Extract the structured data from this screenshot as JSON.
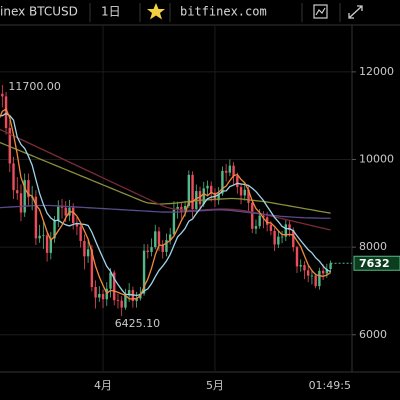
{
  "toolbar": {
    "symbol": "inex BTCUSD",
    "interval": "1日",
    "source": "bitfinex.com"
  },
  "chart_data": {
    "type": "candlestick",
    "categories": [
      null,
      null,
      null,
      null,
      null,
      null,
      null,
      null,
      null,
      null,
      null,
      null,
      null,
      null,
      null,
      null,
      null,
      null,
      null,
      null,
      null,
      null,
      null,
      null,
      null,
      null,
      null,
      null,
      "4月",
      null,
      null,
      null,
      null,
      null,
      null,
      null,
      null,
      null,
      null,
      null,
      null,
      null,
      null,
      null,
      null,
      null,
      null,
      null,
      null,
      null,
      null,
      null,
      null,
      null,
      null,
      null,
      null,
      null,
      "5月",
      null,
      null,
      null,
      null,
      null,
      null,
      null,
      null,
      null,
      null,
      null,
      null,
      null,
      null,
      null,
      null,
      null,
      null,
      null,
      null,
      null,
      null,
      null,
      null,
      null,
      null,
      null,
      null,
      null,
      null,
      null
    ],
    "open": [
      11300,
      11500,
      11440,
      10720,
      9910,
      9300,
      9230,
      8790,
      9530,
      9140,
      9150,
      8200,
      8260,
      8270,
      7870,
      8200,
      8610,
      8920,
      8900,
      8720,
      8900,
      8550,
      8470,
      8140,
      7790,
      7950,
      7090,
      6850,
      6930,
      6810,
      7050,
      7420,
      6790,
      6780,
      6620,
      6900,
      7020,
      6770,
      6830,
      6940,
      7920,
      7890,
      8000,
      8360,
      8060,
      7890,
      8160,
      8290,
      8850,
      8920,
      8800,
      8940,
      9650,
      8870,
      9280,
      8980,
      9340,
      9400,
      9240,
      9070,
      9220,
      9740,
      9700,
      9860,
      9620,
      9370,
      9180,
      9310,
      9010,
      8420,
      8480,
      8720,
      8680,
      8510,
      8370,
      8060,
      8240,
      8240,
      8520,
      8390,
      8000,
      7560,
      7590,
      7470,
      7350,
      7350,
      7110,
      7460,
      7400,
      7500
    ],
    "high": [
      11650,
      11700,
      11540,
      10900,
      10060,
      9600,
      9430,
      9680,
      9680,
      9400,
      9300,
      8510,
      8570,
      8370,
      8350,
      8710,
      9070,
      9100,
      9050,
      9080,
      9000,
      8700,
      8570,
      8290,
      8200,
      8050,
      7240,
      7110,
      7030,
      7200,
      7520,
      7470,
      6940,
      6880,
      7050,
      7180,
      7100,
      6980,
      7090,
      8070,
      8070,
      8200,
      8510,
      8460,
      8160,
      8310,
      8440,
      9050,
      9040,
      9020,
      9060,
      9750,
      9730,
      9430,
      9380,
      9490,
      9520,
      9500,
      9340,
      9370,
      9840,
      9900,
      10000,
      9940,
      9700,
      9430,
      9460,
      9390,
      9060,
      8630,
      8870,
      8820,
      8800,
      8590,
      8440,
      8360,
      8370,
      8640,
      8600,
      8450,
      8030,
      7720,
      7680,
      7570,
      7460,
      7400,
      7530,
      7610,
      7620,
      7692
    ],
    "low": [
      11100,
      11190,
      10570,
      9710,
      9100,
      9080,
      8590,
      8690,
      8940,
      8840,
      8050,
      8100,
      7960,
      7670,
      7720,
      8100,
      8460,
      8650,
      8570,
      8600,
      8400,
      8270,
      7990,
      7490,
      7640,
      6990,
      6600,
      6750,
      6610,
      6660,
      6850,
      6670,
      6600,
      6425.1,
      6570,
      6750,
      6620,
      6620,
      6780,
      6890,
      7740,
      7790,
      7950,
      7910,
      7740,
      7790,
      8060,
      8240,
      8650,
      8650,
      8700,
      8890,
      8670,
      8790,
      8830,
      8920,
      9180,
      9040,
      8920,
      8970,
      9170,
      9500,
      9620,
      9420,
      9220,
      8980,
      9060,
      8810,
      8320,
      8300,
      8420,
      8430,
      8360,
      8270,
      7910,
      7980,
      8090,
      8140,
      8240,
      7900,
      7410,
      7440,
      7270,
      7200,
      7150,
      7060,
      7030,
      7250,
      7300,
      7420
    ],
    "close": [
      11500,
      11440,
      10720,
      9910,
      9300,
      9230,
      8790,
      9530,
      9140,
      9150,
      8200,
      8260,
      8270,
      7870,
      8200,
      8610,
      8920,
      8900,
      8720,
      8900,
      8550,
      8470,
      8140,
      7790,
      7950,
      7090,
      6850,
      6930,
      6810,
      7050,
      7420,
      6790,
      6780,
      6620,
      6900,
      7020,
      6770,
      6830,
      6940,
      7920,
      7890,
      8000,
      8360,
      8060,
      7890,
      8160,
      8290,
      8850,
      8920,
      8800,
      8940,
      9650,
      8870,
      9280,
      8980,
      9340,
      9400,
      9240,
      9070,
      9220,
      9740,
      9700,
      9860,
      9620,
      9370,
      9180,
      9310,
      9010,
      8420,
      8480,
      8720,
      8680,
      8510,
      8370,
      8060,
      8240,
      8240,
      8520,
      8390,
      8000,
      7560,
      7590,
      7470,
      7350,
      7350,
      7110,
      7460,
      7400,
      7500,
      7632
    ],
    "up_color": "#53b987",
    "down_color": "#eb4d5c",
    "moving_averages": [
      {
        "color": "#8a8f3a",
        "values": [
          10400,
          10365,
          10330,
          10295,
          10260,
          10225,
          10190,
          10155,
          10120,
          10085,
          10050,
          10015,
          9980,
          9945,
          9910,
          9875,
          9840,
          9805,
          9770,
          9735,
          9700,
          9665,
          9630,
          9595,
          9560,
          9525,
          9490,
          9455,
          9420,
          9385,
          9350,
          9315,
          9280,
          9245,
          9210,
          9175,
          9140,
          9105,
          9070,
          9035,
          9010,
          9000,
          8990,
          8985,
          8985,
          8990,
          8995,
          9000,
          9010,
          9020,
          9030,
          9040,
          9050,
          9060,
          9070,
          9075,
          9080,
          9085,
          9090,
          9095,
          9100,
          9105,
          9110,
          9110,
          9105,
          9100,
          9090,
          9080,
          9070,
          9060,
          9050,
          9040,
          9030,
          9015,
          9000,
          8985,
          8970,
          8955,
          8940,
          8925,
          8910,
          8895,
          8880,
          8865,
          8850,
          8835,
          8820,
          8805,
          8790,
          8775
        ]
      },
      {
        "color": "#7a2a3a",
        "values": [
          10700,
          10660,
          10620,
          10580,
          10540,
          10500,
          10460,
          10420,
          10380,
          10340,
          10300,
          10260,
          10220,
          10180,
          10140,
          10100,
          10060,
          10020,
          9980,
          9940,
          9900,
          9860,
          9820,
          9780,
          9740,
          9700,
          9660,
          9620,
          9580,
          9540,
          9500,
          9460,
          9420,
          9380,
          9340,
          9300,
          9260,
          9220,
          9180,
          9140,
          9100,
          9060,
          9020,
          8980,
          8940,
          8910,
          8890,
          8870,
          8860,
          8850,
          8845,
          8840,
          8840,
          8840,
          8845,
          8850,
          8855,
          8860,
          8865,
          8870,
          8870,
          8870,
          8865,
          8860,
          8850,
          8840,
          8830,
          8815,
          8800,
          8785,
          8770,
          8750,
          8730,
          8710,
          8690,
          8670,
          8650,
          8630,
          8610,
          8590,
          8570,
          8550,
          8530,
          8510,
          8490,
          8470,
          8450,
          8430,
          8410,
          8390
        ]
      },
      {
        "color": "#5a4a8a",
        "values": [
          8900,
          8905,
          8910,
          8915,
          8920,
          8925,
          8930,
          8935,
          8940,
          8945,
          8950,
          8950,
          8950,
          8950,
          8950,
          8945,
          8940,
          8935,
          8930,
          8925,
          8920,
          8915,
          8910,
          8905,
          8900,
          8895,
          8890,
          8885,
          8880,
          8875,
          8870,
          8865,
          8860,
          8855,
          8850,
          8845,
          8840,
          8835,
          8830,
          8825,
          8820,
          8815,
          8810,
          8805,
          8800,
          8800,
          8800,
          8800,
          8800,
          8805,
          8810,
          8815,
          8820,
          8825,
          8830,
          8835,
          8840,
          8845,
          8850,
          8850,
          8850,
          8845,
          8840,
          8830,
          8820,
          8810,
          8800,
          8790,
          8780,
          8770,
          8760,
          8750,
          8740,
          8730,
          8720,
          8710,
          8700,
          8695,
          8690,
          8685,
          8680,
          8675,
          8670,
          8668,
          8666,
          8664,
          8662,
          8660,
          8660,
          8660
        ]
      },
      {
        "color": "#9fd4e8",
        "values": [
          11000,
          11000,
          11050,
          11000,
          10900,
          10510,
          10345,
          10251,
          10074,
          9869,
          9541,
          9223,
          8978,
          8774,
          8664,
          8602,
          8615,
          8552,
          8510,
          8485,
          8520,
          8541,
          8528,
          8520,
          8495,
          8343,
          8136,
          7939,
          7748,
          7563,
          7450,
          7282,
          7146,
          7029,
          6924,
          6917,
          6909,
          6899,
          6912,
          6999,
          7046,
          7167,
          7325,
          7469,
          7568,
          7682,
          7834,
          8036,
          8234,
          8322,
          8427,
          8592,
          8643,
          8765,
          8874,
          8992,
          9103,
          9142,
          9157,
          9199,
          9279,
          9284,
          9383,
          9417,
          9456,
          9440,
          9431,
          9408,
          9343,
          9269,
          9167,
          9065,
          8930,
          8805,
          8674,
          8580,
          8473,
          8424,
          8421,
          8373,
          8257,
          8148,
          8044,
          7942,
          7871,
          7758,
          7680,
          7568,
          7479,
          7442
        ]
      },
      {
        "color": "#f08a3c",
        "values": [
          10900,
          11100,
          11150,
          10950,
          10570,
          10120,
          9590,
          9352,
          9198,
          9168,
          8962,
          8856,
          8604,
          8350,
          8160,
          8242,
          8374,
          8500,
          8670,
          8810,
          8798,
          8708,
          8556,
          8370,
          8180,
          7888,
          7564,
          7322,
          7126,
          6946,
          7012,
          7000,
          6970,
          6932,
          6902,
          6822,
          6818,
          6828,
          6892,
          7096,
          7270,
          7516,
          7822,
          8046,
          8040,
          8094,
          8152,
          8250,
          8422,
          8604,
          8760,
          9032,
          9036,
          9108,
          9144,
          9224,
          9174,
          9248,
          9206,
          9254,
          9334,
          9394,
          9518,
          9628,
          9658,
          9546,
          9468,
          9298,
          9058,
          8880,
          8788,
          8662,
          8562,
          8552,
          8468,
          8372,
          8284,
          8286,
          8290,
          8278,
          8142,
          8012,
          7802,
          7594,
          7464,
          7374,
          7348,
          7334,
          7364,
          7420
        ]
      }
    ],
    "annotations": [
      {
        "value": 11700,
        "label": "11700.00"
      },
      {
        "value": 6425.1,
        "label": "6425.10"
      }
    ],
    "time_label": "01:49:5",
    "ylim": [
      5150,
      13070
    ],
    "yticks": [
      6000,
      8000,
      10000,
      12000
    ],
    "grid": true
  }
}
